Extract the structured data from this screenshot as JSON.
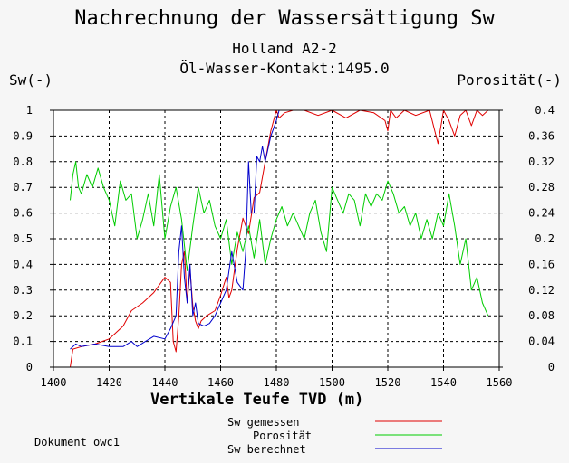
{
  "header": {
    "title": "Nachrechnung der Wassersättigung Sw",
    "subtitle1": "Holland A2-2",
    "subtitle2": "Öl-Wasser-Kontakt:1495.0",
    "ylabel_left": "Sw(-)",
    "ylabel_right": "Porosität(-)",
    "xlabel": "Vertikale Teufe TVD (m)",
    "doc_note": "Dokument owc1"
  },
  "legend": {
    "items": [
      {
        "label": "Sw gemessen",
        "color": "#e00000"
      },
      {
        "label": "Porosität",
        "color": "#00cc00"
      },
      {
        "label": "Sw berechnet",
        "color": "#0000cc"
      }
    ]
  },
  "chart_data": {
    "type": "line",
    "title": "Nachrechnung der Wassersättigung Sw",
    "subtitle": "Holland A2-2 / Öl-Wasser-Kontakt:1495.0",
    "xlabel": "Vertikale Teufe TVD (m)",
    "ylabel": "Sw(-)",
    "ylabel_right": "Porosität(-)",
    "xlim": [
      1400,
      1560
    ],
    "ylim": [
      0,
      1
    ],
    "ylim_right": [
      0,
      0.4
    ],
    "grid": true,
    "legend_position": "bottom-right",
    "x_ticks": [
      "1400",
      "1420",
      "1440",
      "1460",
      "1480",
      "1500",
      "1520",
      "1540",
      "1560"
    ],
    "y_ticks_left": [
      "0",
      "0.1",
      "0.2",
      "0.3",
      "0.4",
      "0.5",
      "0.6",
      "0.7",
      "0.8",
      "0.9",
      "1"
    ],
    "y_ticks_right": [
      "0",
      "0.04",
      "0.08",
      "0.12",
      "0.16",
      "0.2",
      "0.24",
      "0.28",
      "0.32",
      "0.36",
      "0.4"
    ],
    "series": [
      {
        "name": "Sw gemessen",
        "color": "#e00000",
        "axis": "left",
        "x": [
          1406,
          1407,
          1410,
          1415,
          1420,
          1425,
          1428,
          1432,
          1436,
          1440,
          1442,
          1443,
          1444,
          1445,
          1446,
          1447,
          1448,
          1449,
          1450,
          1451,
          1452,
          1453,
          1455,
          1458,
          1460,
          1462,
          1463,
          1464,
          1466,
          1468,
          1470,
          1472,
          1474,
          1476,
          1478,
          1480,
          1481,
          1483,
          1486,
          1490,
          1495,
          1500,
          1505,
          1510,
          1515,
          1519,
          1520,
          1521,
          1523,
          1526,
          1530,
          1535,
          1538,
          1540,
          1542,
          1544,
          1546,
          1548,
          1550,
          1552,
          1554,
          1556
        ],
        "y": [
          0.0,
          0.07,
          0.08,
          0.09,
          0.11,
          0.16,
          0.22,
          0.25,
          0.29,
          0.35,
          0.33,
          0.1,
          0.06,
          0.2,
          0.4,
          0.45,
          0.25,
          0.38,
          0.24,
          0.18,
          0.15,
          0.18,
          0.2,
          0.22,
          0.28,
          0.35,
          0.27,
          0.3,
          0.46,
          0.58,
          0.52,
          0.66,
          0.68,
          0.8,
          0.92,
          1.0,
          0.97,
          0.99,
          1.0,
          1.0,
          0.98,
          1.0,
          0.97,
          1.0,
          0.99,
          0.96,
          0.92,
          1.0,
          0.97,
          1.0,
          0.98,
          1.0,
          0.87,
          1.0,
          0.96,
          0.9,
          0.98,
          1.0,
          0.94,
          1.0,
          0.98,
          1.0
        ]
      },
      {
        "name": "Porosität",
        "color": "#00cc00",
        "axis": "right",
        "x": [
          1406,
          1407,
          1408,
          1409,
          1410,
          1412,
          1414,
          1416,
          1418,
          1420,
          1422,
          1424,
          1426,
          1428,
          1430,
          1432,
          1434,
          1436,
          1438,
          1440,
          1442,
          1444,
          1446,
          1448,
          1450,
          1452,
          1454,
          1456,
          1458,
          1460,
          1462,
          1464,
          1466,
          1468,
          1470,
          1472,
          1474,
          1476,
          1478,
          1480,
          1482,
          1484,
          1486,
          1488,
          1490,
          1492,
          1494,
          1496,
          1498,
          1500,
          1502,
          1504,
          1506,
          1508,
          1510,
          1512,
          1514,
          1516,
          1518,
          1520,
          1522,
          1524,
          1526,
          1528,
          1530,
          1532,
          1534,
          1536,
          1538,
          1540,
          1542,
          1544,
          1546,
          1548,
          1550,
          1552,
          1554,
          1556
        ],
        "y": [
          0.26,
          0.3,
          0.32,
          0.28,
          0.27,
          0.3,
          0.28,
          0.31,
          0.28,
          0.26,
          0.22,
          0.29,
          0.26,
          0.27,
          0.2,
          0.23,
          0.27,
          0.22,
          0.3,
          0.2,
          0.25,
          0.28,
          0.23,
          0.15,
          0.22,
          0.28,
          0.24,
          0.26,
          0.22,
          0.2,
          0.23,
          0.16,
          0.21,
          0.18,
          0.22,
          0.17,
          0.23,
          0.16,
          0.2,
          0.23,
          0.25,
          0.22,
          0.24,
          0.22,
          0.2,
          0.24,
          0.26,
          0.21,
          0.18,
          0.28,
          0.26,
          0.24,
          0.27,
          0.26,
          0.22,
          0.27,
          0.25,
          0.27,
          0.26,
          0.29,
          0.27,
          0.24,
          0.25,
          0.22,
          0.24,
          0.2,
          0.23,
          0.2,
          0.24,
          0.22,
          0.27,
          0.22,
          0.16,
          0.2,
          0.12,
          0.14,
          0.1,
          0.08
        ]
      },
      {
        "name": "Sw berechnet",
        "color": "#0000cc",
        "axis": "left",
        "x": [
          1406,
          1408,
          1410,
          1415,
          1420,
          1425,
          1428,
          1430,
          1433,
          1436,
          1440,
          1442,
          1444,
          1445,
          1446,
          1447,
          1448,
          1449,
          1450,
          1451,
          1452,
          1454,
          1456,
          1458,
          1460,
          1462,
          1464,
          1466,
          1468,
          1469,
          1470,
          1471,
          1472,
          1473,
          1474,
          1475,
          1476,
          1478,
          1480,
          1481
        ],
        "y": [
          0.07,
          0.09,
          0.08,
          0.09,
          0.08,
          0.08,
          0.1,
          0.08,
          0.1,
          0.12,
          0.11,
          0.15,
          0.2,
          0.45,
          0.55,
          0.35,
          0.25,
          0.4,
          0.2,
          0.25,
          0.17,
          0.16,
          0.17,
          0.2,
          0.25,
          0.3,
          0.45,
          0.33,
          0.3,
          0.45,
          0.8,
          0.6,
          0.6,
          0.82,
          0.8,
          0.86,
          0.8,
          0.9,
          0.96,
          1.0
        ]
      }
    ]
  }
}
